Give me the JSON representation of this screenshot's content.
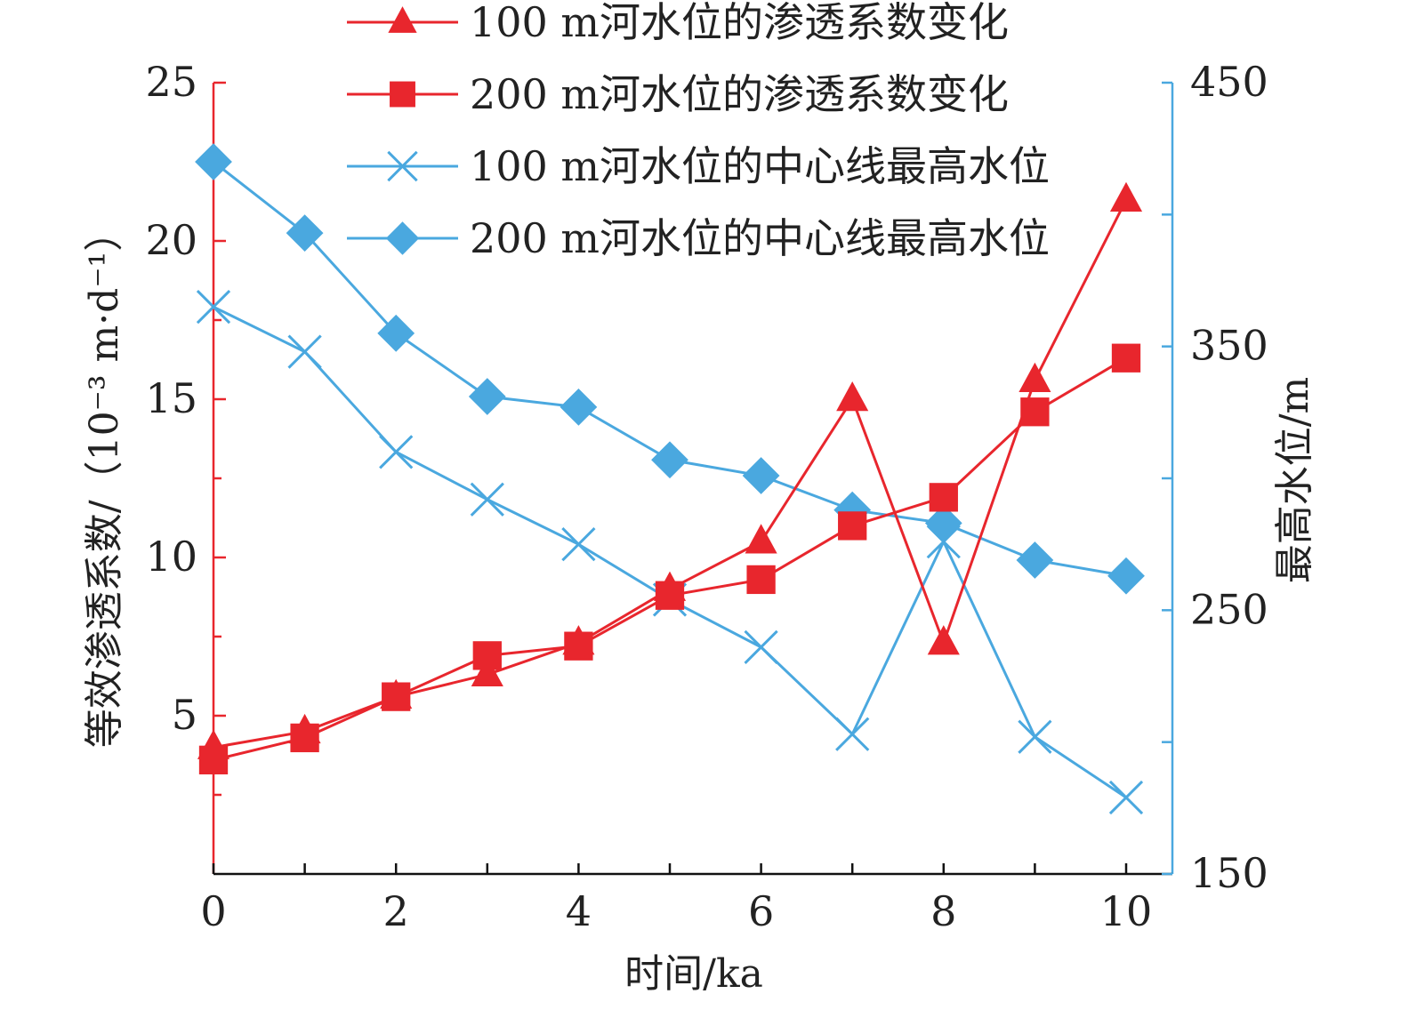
{
  "chart_data": {
    "type": "line",
    "x": [
      0,
      1,
      2,
      3,
      4,
      5,
      6,
      7,
      8,
      9,
      10
    ],
    "xlabel": "时间/ka",
    "x_ticks": [
      "0",
      "2",
      "4",
      "6",
      "8",
      "10"
    ],
    "xlim": [
      0,
      10.5
    ],
    "ylabel_left": "等效渗透系数/（10⁻³ m·d⁻¹）",
    "ylim_left": [
      0,
      25
    ],
    "y_ticks_left": [
      "5",
      "10",
      "15",
      "20",
      "25"
    ],
    "ylabel_right": "最高水位/m",
    "ylim_right": [
      150,
      450
    ],
    "y_ticks_right": [
      "150",
      "250",
      "350",
      "450"
    ],
    "grid": false,
    "legend_position": "top",
    "colors": {
      "red": "#e8262d",
      "blue": "#4aa8df",
      "axis_red": "#e8262d",
      "axis_blue": "#4aa8df"
    },
    "series": [
      {
        "name": "100 m河水位的渗透系数变化",
        "axis": "left",
        "marker": "triangle",
        "color": "red",
        "values": [
          4.0,
          4.5,
          5.6,
          6.3,
          7.3,
          9.0,
          10.5,
          15.0,
          7.3,
          15.6,
          21.3
        ]
      },
      {
        "name": "200 m河水位的渗透系数变化",
        "axis": "left",
        "marker": "square",
        "color": "red",
        "values": [
          3.6,
          4.3,
          5.6,
          6.9,
          7.2,
          8.8,
          9.3,
          11.0,
          11.9,
          14.6,
          16.3
        ]
      },
      {
        "name": "100 m河水位的中心线最高水位",
        "axis": "right",
        "marker": "x",
        "color": "blue",
        "values": [
          365,
          348,
          310,
          292,
          275,
          254,
          236,
          203,
          276,
          202,
          179
        ]
      },
      {
        "name": "200 m河水位的中心线最高水位",
        "axis": "right",
        "marker": "diamond",
        "color": "blue",
        "values": [
          420,
          393,
          355,
          331,
          327,
          307,
          301,
          288,
          283,
          269,
          263
        ]
      }
    ]
  }
}
